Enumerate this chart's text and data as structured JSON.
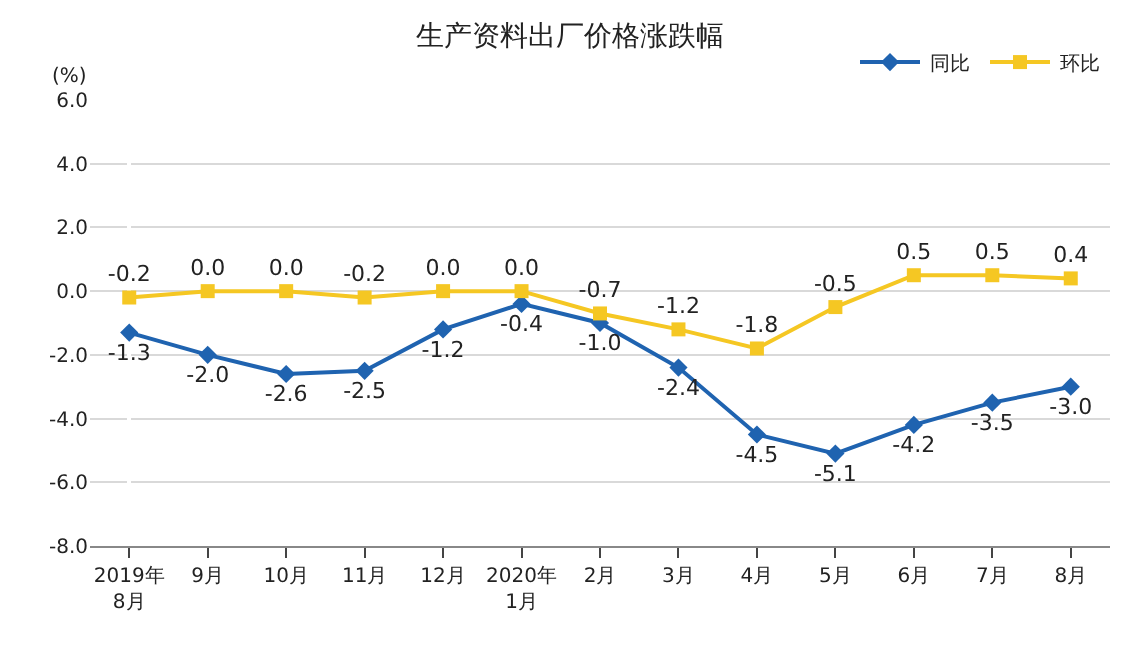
{
  "chart_data": {
    "type": "line",
    "title": "生产资料出厂价格涨跌幅",
    "ylabel": "(%)",
    "categories": [
      "2019年\n8月",
      "9月",
      "10月",
      "11月",
      "12月",
      "2020年\n1月",
      "2月",
      "3月",
      "4月",
      "5月",
      "6月",
      "7月",
      "8月"
    ],
    "series": [
      {
        "name": "同比",
        "color": "#1f63b0",
        "marker": "diamond",
        "values": [
          -1.3,
          -2.0,
          -2.6,
          -2.5,
          -1.2,
          -0.4,
          -1.0,
          -2.4,
          -4.5,
          -5.1,
          -4.2,
          -3.5,
          -3.0
        ],
        "value_labels": [
          "-1.3",
          "-2.0",
          "-2.6",
          "-2.5",
          "-1.2",
          "-0.4",
          "-1.0",
          "-2.4",
          "-4.5",
          "-5.1",
          "-4.2",
          "-3.5",
          "-3.0"
        ]
      },
      {
        "name": "环比",
        "color": "#f5c723",
        "marker": "square",
        "values": [
          -0.2,
          0.0,
          0.0,
          -0.2,
          0.0,
          0.0,
          -0.7,
          -1.2,
          -1.8,
          -0.5,
          0.5,
          0.5,
          0.4
        ],
        "value_labels": [
          "-0.2",
          "0.0",
          "0.0",
          "-0.2",
          "0.0",
          "0.0",
          "-0.7",
          "-1.2",
          "-1.8",
          "-0.5",
          "0.5",
          "0.5",
          "0.4"
        ]
      }
    ],
    "ylim": [
      -8.0,
      6.0
    ],
    "yticks": [
      {
        "value": -8,
        "label": "-8.0"
      },
      {
        "value": -6,
        "label": "-6.0"
      },
      {
        "value": -4,
        "label": "-4.0"
      },
      {
        "value": -2,
        "label": "-2.0"
      },
      {
        "value": 0,
        "label": "0.0"
      },
      {
        "value": 2,
        "label": "2.0"
      },
      {
        "value": 4,
        "label": "4.0"
      },
      {
        "value": 6,
        "label": "6.0"
      }
    ],
    "grid": "y",
    "legend": "top right",
    "line_style": "solid"
  }
}
